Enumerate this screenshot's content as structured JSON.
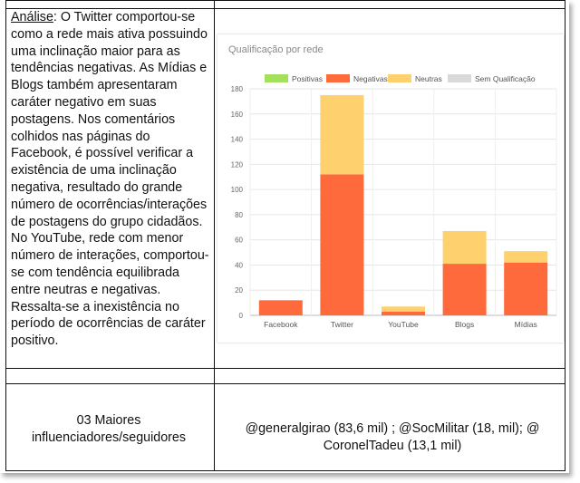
{
  "analysis": {
    "label": "Análise",
    "text": ": O Twitter comportou-se como a rede mais ativa possuindo uma inclinação maior para as tendências negativas. As Mídias e Blogs também apresentaram caráter negativo em suas postagens. Nos comentários colhidos nas páginas do Facebook, é possível verificar a existência de uma inclinação negativa, resultado do grande número de ocorrências/interações de postagens do grupo cidadãos. No YouTube, rede com menor número de interações, comportou-se com tendência equilibrada entre neutras e negativas. Ressalta-se a inexistência no período de ocorrências de caráter positivo."
  },
  "influencers": {
    "label": "03 Maiores influenciadores/seguidores",
    "value": "@generalgirao (83,6 mil) ; @SocMilitar (18, mil); @ CoronelTadeu (13,1 mil)"
  },
  "colors": {
    "positivas": "#a3e05c",
    "negativas": "#ff6a3d",
    "neutras": "#fed06e",
    "sem": "#d9d9d9"
  },
  "chart_data": {
    "type": "bar",
    "stacked": true,
    "title": "Qualificação por rede",
    "categories": [
      "Facebook",
      "Twitter",
      "YouTube",
      "Blogs",
      "Mídias"
    ],
    "series": [
      {
        "name": "Positivas",
        "values": [
          0,
          0,
          0,
          0,
          0
        ]
      },
      {
        "name": "Negativas",
        "values": [
          12,
          112,
          3,
          41,
          42
        ]
      },
      {
        "name": "Neutras",
        "values": [
          0,
          63,
          4,
          26,
          9
        ]
      },
      {
        "name": "Sem Qualificação",
        "values": [
          0,
          0,
          0,
          0,
          0
        ]
      }
    ],
    "yticks": [
      0,
      20,
      40,
      60,
      80,
      100,
      120,
      140,
      160,
      180
    ],
    "ylim": [
      0,
      180
    ],
    "legend": "top",
    "grid": true
  }
}
